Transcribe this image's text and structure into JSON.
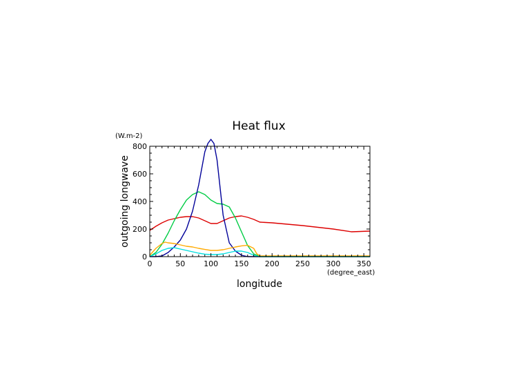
{
  "chart_data": {
    "type": "line",
    "title": "Heat flux",
    "xlabel": "longitude",
    "ylabel": "outgoing longwave",
    "xunits": "(degree_east)",
    "yunits": "(W.m-2)",
    "xlim": [
      0,
      360
    ],
    "ylim": [
      0,
      800
    ],
    "xticks": [
      0,
      50,
      100,
      150,
      200,
      250,
      300,
      350
    ],
    "yticks": [
      0,
      200,
      400,
      600,
      800
    ],
    "grid": false,
    "series": [
      {
        "color": "#dd0000",
        "x": [
          0,
          10,
          20,
          30,
          40,
          50,
          60,
          70,
          80,
          90,
          100,
          110,
          120,
          130,
          140,
          150,
          160,
          170,
          180,
          200,
          250,
          300,
          330,
          360
        ],
        "y": [
          190,
          220,
          245,
          265,
          275,
          285,
          290,
          290,
          280,
          260,
          240,
          240,
          260,
          280,
          290,
          295,
          285,
          270,
          250,
          245,
          225,
          200,
          180,
          185
        ]
      },
      {
        "color": "#00cc44",
        "x": [
          0,
          10,
          20,
          30,
          40,
          50,
          60,
          70,
          80,
          90,
          100,
          110,
          120,
          130,
          140,
          150,
          160,
          170,
          180,
          200,
          360
        ],
        "y": [
          0,
          30,
          90,
          170,
          260,
          340,
          410,
          450,
          470,
          450,
          410,
          385,
          380,
          360,
          280,
          180,
          80,
          20,
          0,
          0,
          0
        ]
      },
      {
        "color": "#000099",
        "x": [
          0,
          10,
          20,
          30,
          40,
          50,
          60,
          70,
          80,
          90,
          95,
          100,
          105,
          110,
          120,
          130,
          140,
          150,
          160,
          170,
          180,
          200,
          360
        ],
        "y": [
          0,
          0,
          5,
          30,
          70,
          120,
          200,
          330,
          520,
          760,
          820,
          850,
          820,
          700,
          300,
          100,
          40,
          10,
          0,
          0,
          0,
          0,
          0
        ]
      },
      {
        "color": "#ffaa00",
        "x": [
          0,
          10,
          20,
          25,
          30,
          40,
          50,
          60,
          70,
          80,
          90,
          100,
          110,
          120,
          130,
          140,
          150,
          160,
          170,
          175,
          180,
          200,
          360
        ],
        "y": [
          10,
          60,
          95,
          105,
          100,
          95,
          85,
          75,
          70,
          60,
          52,
          45,
          45,
          50,
          60,
          70,
          78,
          82,
          60,
          20,
          5,
          5,
          5
        ]
      },
      {
        "color": "#00dddd",
        "x": [
          0,
          10,
          20,
          30,
          40,
          50,
          60,
          70,
          80,
          90,
          100,
          110,
          120,
          130,
          140,
          150,
          160,
          170,
          180,
          200,
          360
        ],
        "y": [
          0,
          20,
          45,
          60,
          65,
          55,
          45,
          35,
          25,
          18,
          15,
          15,
          20,
          30,
          40,
          40,
          30,
          10,
          0,
          0,
          0
        ]
      }
    ]
  }
}
